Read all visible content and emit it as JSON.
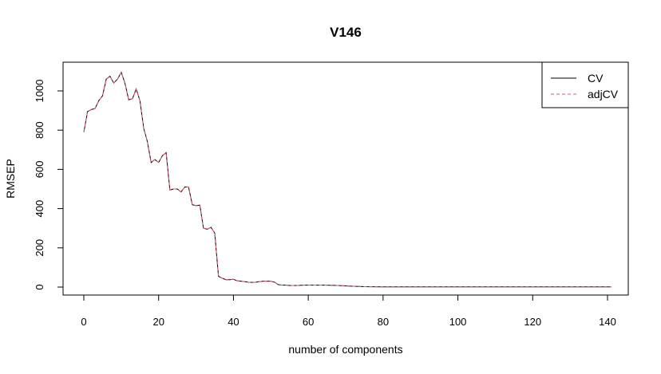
{
  "chart_data": {
    "type": "line",
    "title": "V146",
    "xlabel": "number of components",
    "ylabel": "RMSEP",
    "xlim": [
      0,
      141
    ],
    "ylim": [
      0,
      1100
    ],
    "xticks": [
      "0",
      "20",
      "40",
      "60",
      "80",
      "100",
      "120",
      "140"
    ],
    "yticks": [
      "0",
      "200",
      "400",
      "600",
      "800",
      "1000"
    ],
    "grid": false,
    "legend_position": "top-right",
    "x": [
      0,
      1,
      2,
      3,
      4,
      5,
      6,
      7,
      8,
      9,
      10,
      11,
      12,
      13,
      14,
      15,
      16,
      17,
      18,
      19,
      20,
      21,
      22,
      23,
      24,
      25,
      26,
      27,
      28,
      29,
      30,
      31,
      32,
      33,
      34,
      35,
      36,
      37,
      38,
      39,
      40,
      41,
      42,
      43,
      44,
      45,
      46,
      47,
      48,
      49,
      50,
      51,
      52,
      53,
      54,
      55,
      56,
      57,
      58,
      59,
      60,
      62,
      64,
      66,
      68,
      70,
      72,
      75,
      80,
      90,
      100,
      110,
      120,
      130,
      141
    ],
    "series": [
      {
        "name": "CV",
        "color": "#000000",
        "dash": "solid",
        "values": [
          790,
          895,
          905,
          910,
          950,
          975,
          1060,
          1075,
          1040,
          1060,
          1095,
          1040,
          955,
          960,
          1010,
          950,
          810,
          740,
          635,
          650,
          635,
          670,
          685,
          495,
          500,
          500,
          485,
          510,
          510,
          420,
          415,
          418,
          300,
          295,
          305,
          275,
          55,
          45,
          38,
          38,
          40,
          32,
          30,
          28,
          25,
          24,
          25,
          28,
          30,
          30,
          30,
          25,
          12,
          10,
          10,
          8,
          8,
          8,
          9,
          10,
          10,
          10,
          10,
          9,
          8,
          6,
          4,
          2,
          1,
          1,
          1,
          1,
          1,
          1,
          1
        ]
      },
      {
        "name": "adjCV",
        "color": "#DF536B",
        "dash": "dashed",
        "values": [
          790,
          895,
          905,
          910,
          950,
          975,
          1060,
          1075,
          1040,
          1060,
          1095,
          1040,
          955,
          960,
          1010,
          950,
          810,
          740,
          635,
          650,
          635,
          670,
          685,
          495,
          500,
          500,
          485,
          510,
          510,
          420,
          415,
          418,
          300,
          295,
          305,
          275,
          55,
          45,
          38,
          38,
          40,
          32,
          30,
          28,
          25,
          24,
          25,
          28,
          30,
          30,
          30,
          25,
          12,
          10,
          10,
          8,
          8,
          8,
          9,
          10,
          10,
          10,
          10,
          9,
          8,
          6,
          4,
          2,
          1,
          1,
          1,
          1,
          1,
          1,
          1
        ]
      }
    ]
  }
}
